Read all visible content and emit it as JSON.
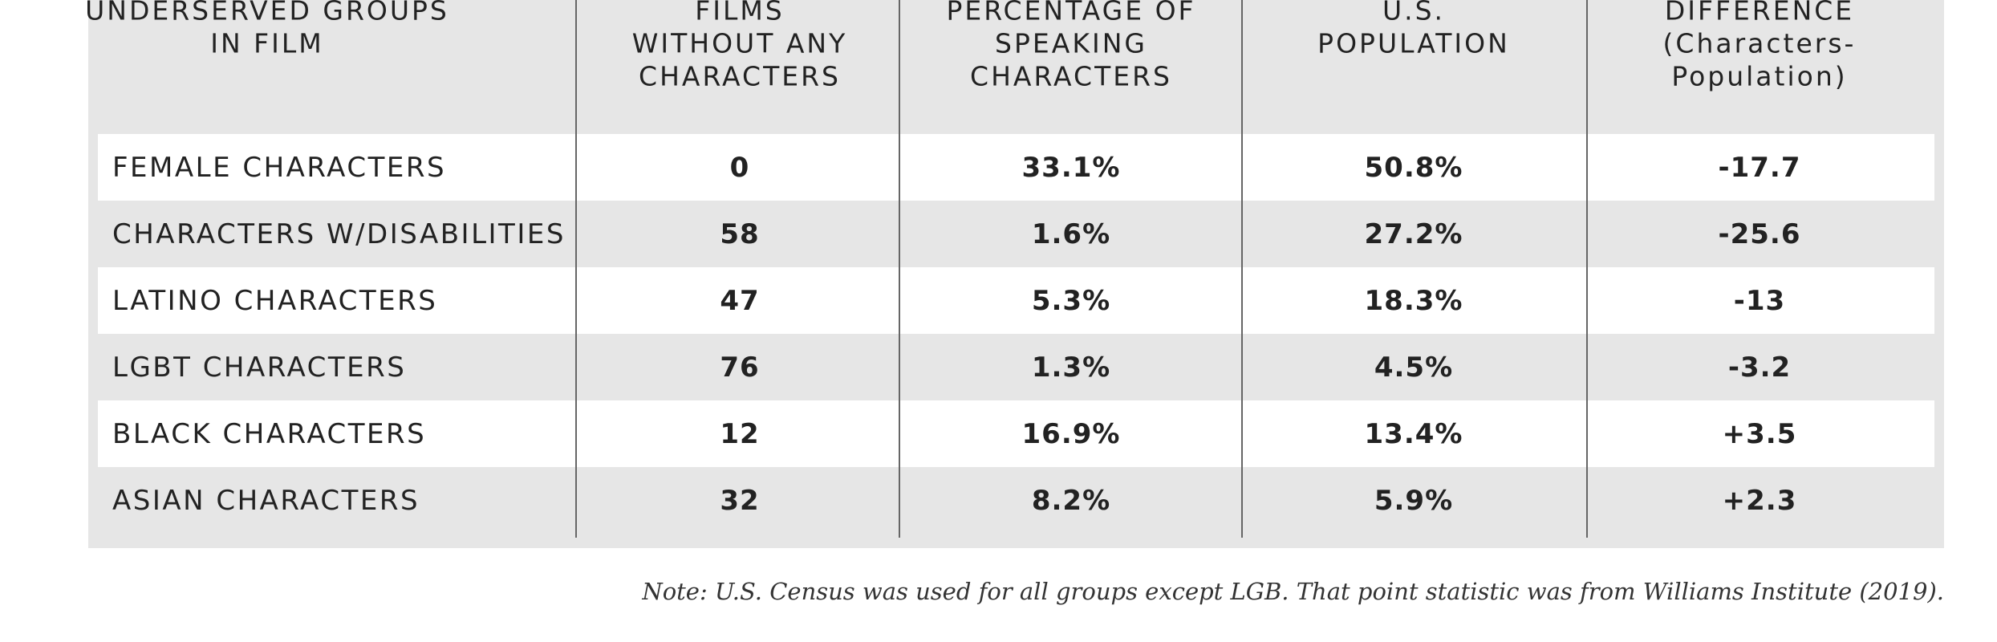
{
  "table": {
    "header": [
      [
        "UNDERSERVED GROUPS",
        "IN FILM"
      ],
      [
        "FILMS",
        "WITHOUT ANY",
        "CHARACTERS"
      ],
      [
        "PERCENTAGE OF",
        "SPEAKING",
        "CHARACTERS"
      ],
      [
        "U.S.",
        "POPULATION"
      ],
      [
        "DIFFERENCE",
        "(Characters-",
        "Population)"
      ]
    ],
    "rows": [
      [
        "FEMALE CHARACTERS",
        "0",
        "33.1%",
        "50.8%",
        "-17.7"
      ],
      [
        "CHARACTERS W/DISABILITIES",
        "58",
        "1.6%",
        "27.2%",
        "-25.6"
      ],
      [
        "LATINO CHARACTERS",
        "47",
        "5.3%",
        "18.3%",
        "-13"
      ],
      [
        "LGBT CHARACTERS",
        "76",
        "1.3%",
        "4.5%",
        "-3.2"
      ],
      [
        "BLACK CHARACTERS",
        "12",
        "16.9%",
        "13.4%",
        "+3.5"
      ],
      [
        "ASIAN CHARACTERS",
        "32",
        "8.2%",
        "5.9%",
        "+2.3"
      ]
    ]
  },
  "note": "Note: U.S. Census was used for all groups except LGB. That point statistic was from Williams Institute (2019)."
}
